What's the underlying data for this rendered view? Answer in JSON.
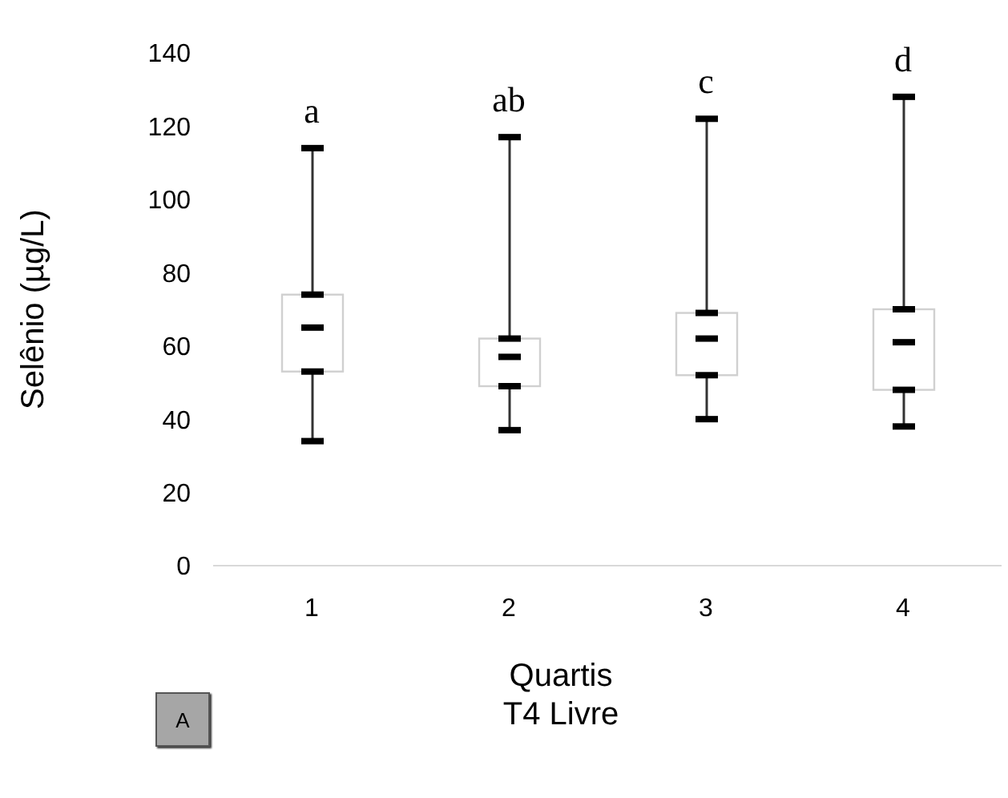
{
  "chart_data": {
    "type": "box",
    "xlabel": "Quartis\nT4 Livre",
    "ylabel": "Selênio (µg/L)",
    "categories": [
      "1",
      "2",
      "3",
      "4"
    ],
    "boxes": [
      {
        "low": 34,
        "q1": 53,
        "median": 65,
        "q3": 74,
        "high": 114
      },
      {
        "low": 37,
        "q1": 49,
        "median": 57,
        "q3": 62,
        "high": 117
      },
      {
        "low": 40,
        "q1": 52,
        "median": 62,
        "q3": 69,
        "high": 122
      },
      {
        "low": 38,
        "q1": 48,
        "median": 61,
        "q3": 70,
        "high": 128
      }
    ],
    "ylim": [
      0,
      140
    ],
    "yticks": [
      0,
      20,
      40,
      60,
      80,
      100,
      120,
      140
    ],
    "grid": false,
    "annotations": [
      "a",
      "ab",
      "c",
      "d",
      "A"
    ]
  }
}
